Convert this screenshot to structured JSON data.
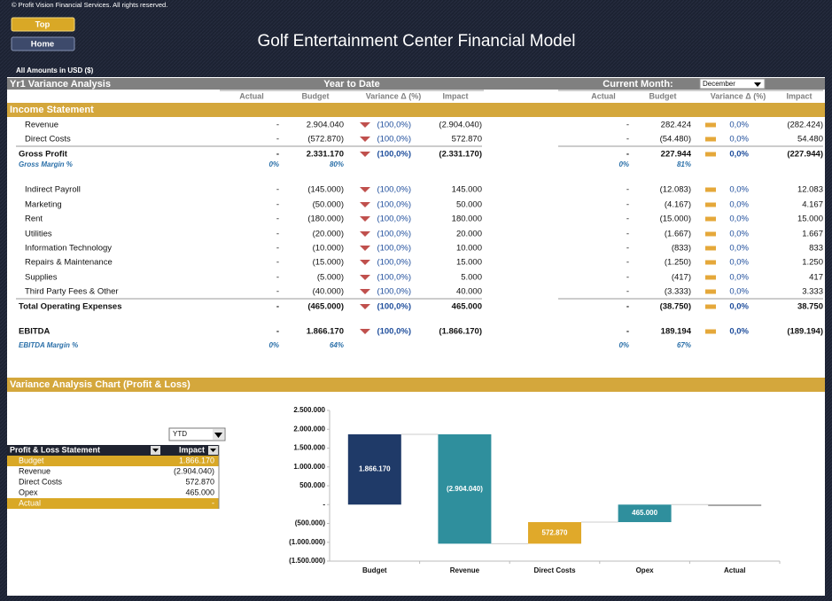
{
  "header": {
    "copyright": "© Profit Vision Financial Services. All rights reserved.",
    "buttons": [
      "Top",
      "Home"
    ],
    "title": "Golf Entertainment Center Financial Model",
    "currency_note": "All Amounts in  USD ($)"
  },
  "variance": {
    "title": "Yr1 Variance Analysis",
    "ytd_label": "Year to Date",
    "month_label": "Current Month:",
    "month": "December",
    "columns": [
      "Actual",
      "Budget",
      "Variance Δ  (%)",
      "Impact"
    ],
    "section": "Income Statement",
    "rows": [
      {
        "label": "Revenue",
        "ytd": [
          "-",
          "2.904.040",
          "(100,0%)",
          "(2.904.040)"
        ],
        "cm": [
          "-",
          "282.424",
          "0,0%",
          "(282.424)"
        ]
      },
      {
        "label": "Direct Costs",
        "ytd": [
          "-",
          "(572.870)",
          "(100,0%)",
          "572.870"
        ],
        "cm": [
          "-",
          "(54.480)",
          "0,0%",
          "54.480"
        ]
      },
      {
        "label": "Gross Profit",
        "bold": true,
        "ytd": [
          "-",
          "2.331.170",
          "(100,0%)",
          "(2.331.170)"
        ],
        "cm": [
          "-",
          "227.944",
          "0,0%",
          "(227.944)"
        ]
      },
      {
        "label": "Gross Margin %",
        "italic": true,
        "ytd": [
          "0%",
          "80%"
        ],
        "cm": [
          "0%",
          "81%"
        ]
      },
      {
        "label": "Indirect Payroll",
        "ytd": [
          "-",
          "(145.000)",
          "(100,0%)",
          "145.000"
        ],
        "cm": [
          "-",
          "(12.083)",
          "0,0%",
          "12.083"
        ]
      },
      {
        "label": "Marketing",
        "ytd": [
          "-",
          "(50.000)",
          "(100,0%)",
          "50.000"
        ],
        "cm": [
          "-",
          "(4.167)",
          "0,0%",
          "4.167"
        ]
      },
      {
        "label": "Rent",
        "ytd": [
          "-",
          "(180.000)",
          "(100,0%)",
          "180.000"
        ],
        "cm": [
          "-",
          "(15.000)",
          "0,0%",
          "15.000"
        ]
      },
      {
        "label": "Utilities",
        "ytd": [
          "-",
          "(20.000)",
          "(100,0%)",
          "20.000"
        ],
        "cm": [
          "-",
          "(1.667)",
          "0,0%",
          "1.667"
        ]
      },
      {
        "label": "Information Technology",
        "ytd": [
          "-",
          "(10.000)",
          "(100,0%)",
          "10.000"
        ],
        "cm": [
          "-",
          "(833)",
          "0,0%",
          "833"
        ]
      },
      {
        "label": "Repairs & Maintenance",
        "ytd": [
          "-",
          "(15.000)",
          "(100,0%)",
          "15.000"
        ],
        "cm": [
          "-",
          "(1.250)",
          "0,0%",
          "1.250"
        ]
      },
      {
        "label": "Supplies",
        "ytd": [
          "-",
          "(5.000)",
          "(100,0%)",
          "5.000"
        ],
        "cm": [
          "-",
          "(417)",
          "0,0%",
          "417"
        ]
      },
      {
        "label": "Third Party Fees & Other",
        "ytd": [
          "-",
          "(40.000)",
          "(100,0%)",
          "40.000"
        ],
        "cm": [
          "-",
          "(3.333)",
          "0,0%",
          "3.333"
        ]
      },
      {
        "label": "Total Operating Expenses",
        "bold": true,
        "ytd": [
          "-",
          "(465.000)",
          "(100,0%)",
          "465.000"
        ],
        "cm": [
          "-",
          "(38.750)",
          "0,0%",
          "38.750"
        ]
      },
      {
        "label": "EBITDA",
        "bold": true,
        "ytd": [
          "-",
          "1.866.170",
          "(100,0%)",
          "(1.866.170)"
        ],
        "cm": [
          "-",
          "189.194",
          "0,0%",
          "(189.194)"
        ]
      },
      {
        "label": "EBITDA Margin %",
        "italic": true,
        "ytd": [
          "0%",
          "64%"
        ],
        "cm": [
          "0%",
          "67%"
        ]
      }
    ]
  },
  "chart_section": {
    "title": "Variance Analysis Chart (Profit & Loss)",
    "selector": "YTD",
    "table": {
      "header": [
        "Profit & Loss Statement",
        "Impact"
      ],
      "rows": [
        [
          "Budget",
          "1.866.170"
        ],
        [
          "Revenue",
          "(2.904.040)"
        ],
        [
          "Direct Costs",
          "572.870"
        ],
        [
          "Opex",
          "465.000"
        ],
        [
          "Actual",
          "-"
        ]
      ]
    }
  },
  "chart_data": {
    "type": "waterfall",
    "categories": [
      "Budget",
      "Revenue",
      "Direct Costs",
      "Opex",
      "Actual"
    ],
    "values": [
      1866170,
      -2904040,
      572870,
      465000,
      0
    ],
    "value_labels": [
      "1.866.170",
      "(2.904.040)",
      "572.870",
      "465.000",
      null
    ],
    "colors": [
      "#1f3a68",
      "#2f8f9d",
      "#e0a92a",
      "#2f8f9d",
      "#8c8c8c"
    ],
    "ylim": [
      -1500000,
      2500000
    ],
    "yticks": [
      {
        "value": -1500000,
        "label": "(1.500.000)"
      },
      {
        "value": -1000000,
        "label": "(1.000.000)"
      },
      {
        "value": -500000,
        "label": "(500.000)"
      },
      {
        "value": 0,
        "label": "-"
      },
      {
        "value": 500000,
        "label": "500.000"
      },
      {
        "value": 1000000,
        "label": "1.000.000"
      },
      {
        "value": 1500000,
        "label": "1.500.000"
      },
      {
        "value": 2000000,
        "label": "2.000.000"
      },
      {
        "value": 2500000,
        "label": "2.500.000"
      }
    ]
  }
}
